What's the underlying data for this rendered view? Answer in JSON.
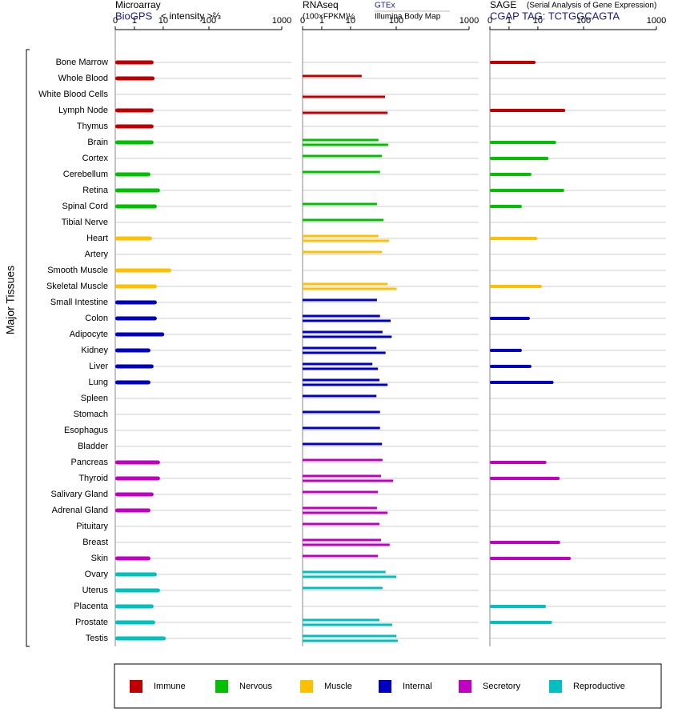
{
  "chart_data": {
    "type": "bar",
    "y_label": "Major Tissues",
    "groups": [
      {
        "name": "Immune",
        "color": "#c00000",
        "tissues": [
          "Bone Marrow",
          "Whole Blood",
          "White Blood Cells",
          "Lymph Node",
          "Thymus"
        ]
      },
      {
        "name": "Nervous",
        "color": "#00c000",
        "tissues": [
          "Brain",
          "Cortex",
          "Cerebellum",
          "Retina",
          "Spinal Cord",
          "Tibial Nerve"
        ]
      },
      {
        "name": "Muscle",
        "color": "#ffc000",
        "tissues": [
          "Heart",
          "Artery",
          "Smooth Muscle",
          "Skeletal Muscle"
        ]
      },
      {
        "name": "Internal",
        "color": "#0000c0",
        "tissues": [
          "Small Intestine",
          "Colon",
          "Adipocyte",
          "Kidney",
          "Liver",
          "Lung",
          "Spleen",
          "Stomach",
          "Esophagus",
          "Bladder"
        ]
      },
      {
        "name": "Secretory",
        "color": "#c000c0",
        "tissues": [
          "Pancreas",
          "Thyroid",
          "Salivary Gland",
          "Adrenal Gland",
          "Pituitary",
          "Breast",
          "Skin"
        ]
      },
      {
        "name": "Reproductive",
        "color": "#00c0c0",
        "tissues": [
          "Ovary",
          "Uterus",
          "Placenta",
          "Prostate",
          "Testis"
        ]
      }
    ],
    "panels": [
      {
        "title": "Microarray",
        "subtitle": "< intensity >⅔",
        "xlim": [
          0,
          1000
        ],
        "xticks": [
          0,
          1,
          10,
          100,
          1000
        ],
        "series": [
          {
            "name": "BioGPS",
            "values": [
              7,
              7.3,
              null,
              7,
              7,
              7,
              null,
              6,
              9,
              8,
              null,
              6.5,
              null,
              26,
              8,
              8,
              8,
              12,
              6,
              7,
              6,
              null,
              null,
              null,
              null,
              9,
              9,
              7,
              6,
              null,
              null,
              6,
              8,
              9,
              7,
              7.5,
              15
            ]
          }
        ]
      },
      {
        "title": "RNAseq",
        "subtitle": "(100×FPKM)½",
        "xlim": [
          0,
          1000
        ],
        "xticks": [
          0,
          1,
          10,
          100,
          1000
        ],
        "series": [
          {
            "name": "GTEx",
            "values": [
              null,
              32,
              null,
              null,
              null,
              65,
              72,
              68,
              null,
              62,
              75,
              65,
              72,
              null,
              83,
              62,
              68,
              73,
              61,
              53,
              67,
              61,
              68,
              68,
              72,
              73,
              70,
              64,
              62,
              67,
              70,
              64,
              79,
              73,
              null,
              67,
              103
            ]
          },
          {
            "name": "Illumina Body Map",
            "values": [
              null,
              null,
              78,
              83,
              null,
              84,
              null,
              null,
              null,
              null,
              null,
              86,
              null,
              null,
              105,
              null,
              89,
              91,
              79,
              64,
              83,
              null,
              null,
              null,
              null,
              null,
              94,
              null,
              83,
              null,
              87,
              null,
              102,
              null,
              null,
              92,
              119
            ]
          }
        ]
      },
      {
        "title": "SAGE",
        "subtitle": "(Serial Analysis of Gene Expression)",
        "xlim": [
          0,
          1000
        ],
        "xticks": [
          0,
          1,
          10,
          100,
          1000
        ],
        "series": [
          {
            "name": "CGAP TAG: TCTGGCAGTA",
            "values": [
              9.3,
              null,
              null,
              64,
              null,
              46,
              31,
              8,
              62,
              5,
              null,
              9.8,
              null,
              null,
              18,
              null,
              7.5,
              null,
              5,
              8,
              41,
              null,
              null,
              null,
              null,
              27,
              53,
              null,
              null,
              null,
              54,
              75,
              null,
              null,
              26,
              38,
              null
            ]
          }
        ]
      }
    ]
  }
}
